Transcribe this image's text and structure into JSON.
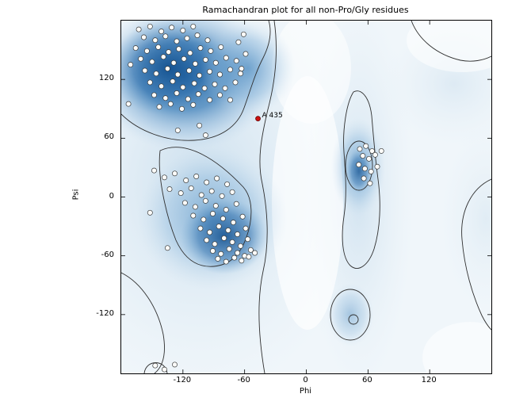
{
  "chart_data": {
    "type": "scatter",
    "title": "Ramachandran plot for all non-Pro/Gly residues",
    "xlabel": "Phi",
    "ylabel": "Psi",
    "xlim": [
      -180,
      180
    ],
    "ylim": [
      -180,
      180
    ],
    "xticks": [
      -120,
      -60,
      0,
      60,
      120
    ],
    "yticks": [
      120,
      60,
      0,
      -60,
      -120
    ],
    "grid": false,
    "legend": "none",
    "background": "density shading of favored regions (blue) with contour outlines",
    "style": {
      "point_fill": "#fdfdfa",
      "point_edge": "#3a3a3a",
      "highlight_color": "#cc1111",
      "density_dark": "#0f4d8c",
      "density_mid": "#4385bd",
      "density_light": "#c6dcee",
      "contour_color": "#2f2f2f"
    },
    "highlight": {
      "label": "A 435",
      "phi": -47,
      "psi": 80
    },
    "points": [
      [
        -163,
        171
      ],
      [
        -152,
        174
      ],
      [
        -141,
        169
      ],
      [
        -131,
        173
      ],
      [
        -120,
        170
      ],
      [
        -110,
        174
      ],
      [
        -158,
        163
      ],
      [
        -147,
        160
      ],
      [
        -137,
        164
      ],
      [
        -126,
        159
      ],
      [
        -116,
        162
      ],
      [
        -106,
        165
      ],
      [
        -96,
        160
      ],
      [
        -166,
        152
      ],
      [
        -155,
        149
      ],
      [
        -144,
        153
      ],
      [
        -134,
        148
      ],
      [
        -124,
        151
      ],
      [
        -113,
        147
      ],
      [
        -103,
        152
      ],
      [
        -93,
        149
      ],
      [
        -83,
        153
      ],
      [
        -161,
        141
      ],
      [
        -150,
        138
      ],
      [
        -139,
        143
      ],
      [
        -129,
        137
      ],
      [
        -119,
        141
      ],
      [
        -108,
        136
      ],
      [
        -98,
        140
      ],
      [
        -88,
        137
      ],
      [
        -78,
        142
      ],
      [
        -68,
        139
      ],
      [
        -157,
        129
      ],
      [
        -146,
        126
      ],
      [
        -135,
        131
      ],
      [
        -125,
        125
      ],
      [
        -114,
        129
      ],
      [
        -104,
        124
      ],
      [
        -94,
        128
      ],
      [
        -84,
        125
      ],
      [
        -74,
        130
      ],
      [
        -64,
        126
      ],
      [
        -152,
        117
      ],
      [
        -141,
        113
      ],
      [
        -130,
        118
      ],
      [
        -120,
        112
      ],
      [
        -109,
        116
      ],
      [
        -99,
        111
      ],
      [
        -89,
        115
      ],
      [
        -79,
        111
      ],
      [
        -69,
        117
      ],
      [
        -148,
        104
      ],
      [
        -137,
        101
      ],
      [
        -126,
        106
      ],
      [
        -115,
        100
      ],
      [
        -105,
        105
      ],
      [
        -94,
        99
      ],
      [
        -84,
        104
      ],
      [
        -74,
        99
      ],
      [
        -63,
        131
      ],
      [
        -59,
        146
      ],
      [
        -66,
        158
      ],
      [
        -61,
        166
      ],
      [
        -173,
        95
      ],
      [
        -171,
        135
      ],
      [
        -143,
        92
      ],
      [
        -132,
        95
      ],
      [
        -121,
        90
      ],
      [
        -110,
        94
      ],
      [
        -125,
        68
      ],
      [
        -104,
        73
      ],
      [
        -98,
        63
      ],
      [
        -148,
        27
      ],
      [
        -138,
        20
      ],
      [
        -128,
        24
      ],
      [
        -117,
        17
      ],
      [
        -107,
        21
      ],
      [
        -97,
        15
      ],
      [
        -87,
        19
      ],
      [
        -77,
        13
      ],
      [
        -133,
        8
      ],
      [
        -122,
        4
      ],
      [
        -112,
        9
      ],
      [
        -102,
        2
      ],
      [
        -92,
        6
      ],
      [
        -82,
        1
      ],
      [
        -72,
        5
      ],
      [
        -118,
        -6
      ],
      [
        -108,
        -10
      ],
      [
        -98,
        -4
      ],
      [
        -88,
        -9
      ],
      [
        -78,
        -13
      ],
      [
        -68,
        -7
      ],
      [
        -110,
        -19
      ],
      [
        -100,
        -23
      ],
      [
        -91,
        -17
      ],
      [
        -81,
        -22
      ],
      [
        -71,
        -26
      ],
      [
        -62,
        -20
      ],
      [
        -103,
        -32
      ],
      [
        -94,
        -36
      ],
      [
        -85,
        -30
      ],
      [
        -76,
        -34
      ],
      [
        -67,
        -38
      ],
      [
        -59,
        -32
      ],
      [
        -97,
        -44
      ],
      [
        -89,
        -48
      ],
      [
        -80,
        -42
      ],
      [
        -72,
        -46
      ],
      [
        -64,
        -50
      ],
      [
        -57,
        -43
      ],
      [
        -91,
        -55
      ],
      [
        -83,
        -58
      ],
      [
        -75,
        -53
      ],
      [
        -67,
        -57
      ],
      [
        -60,
        -60
      ],
      [
        -54,
        -54
      ],
      [
        -86,
        -63
      ],
      [
        -78,
        -66
      ],
      [
        -70,
        -62
      ],
      [
        -63,
        -65
      ],
      [
        -56,
        -61
      ],
      [
        -50,
        -57
      ],
      [
        -135,
        -52
      ],
      [
        -152,
        -16
      ],
      [
        52,
        49
      ],
      [
        58,
        52
      ],
      [
        64,
        47
      ],
      [
        55,
        42
      ],
      [
        61,
        39
      ],
      [
        67,
        43
      ],
      [
        51,
        33
      ],
      [
        57,
        29
      ],
      [
        63,
        26
      ],
      [
        69,
        31
      ],
      [
        56,
        19
      ],
      [
        62,
        14
      ],
      [
        73,
        47
      ],
      [
        -147,
        -172
      ],
      [
        -138,
        -176
      ],
      [
        -128,
        -171
      ]
    ]
  }
}
